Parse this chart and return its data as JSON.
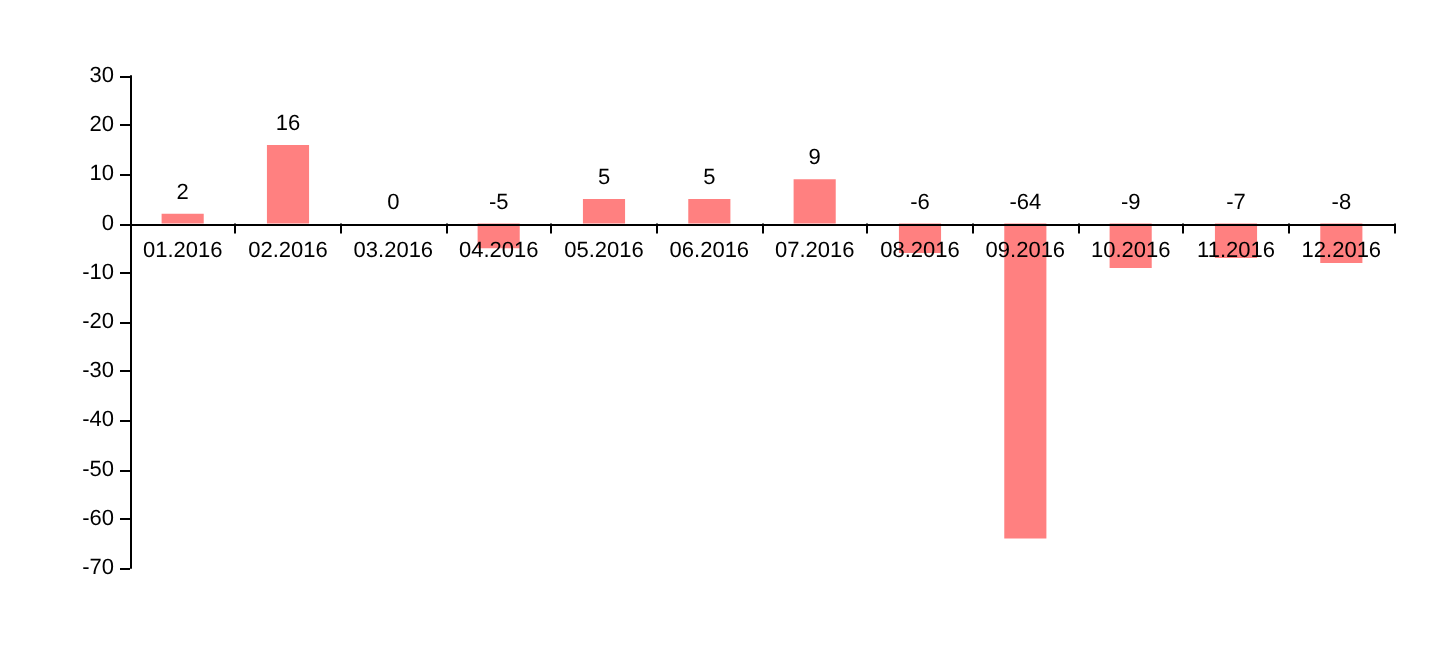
{
  "chart_data": {
    "type": "bar",
    "categories": [
      "01.2016",
      "02.2016",
      "03.2016",
      "04.2016",
      "05.2016",
      "06.2016",
      "07.2016",
      "08.2016",
      "09.2016",
      "10.2016",
      "11.2016",
      "12.2016"
    ],
    "values": [
      2,
      16,
      0,
      -5,
      5,
      5,
      9,
      -6,
      -64,
      -9,
      -7,
      -8
    ],
    "color": "#ff8080",
    "ylim": [
      -70,
      30
    ],
    "yticks": [
      -70,
      -60,
      -50,
      -40,
      -30,
      -20,
      -10,
      0,
      10,
      20,
      30
    ],
    "data_labels": true
  }
}
